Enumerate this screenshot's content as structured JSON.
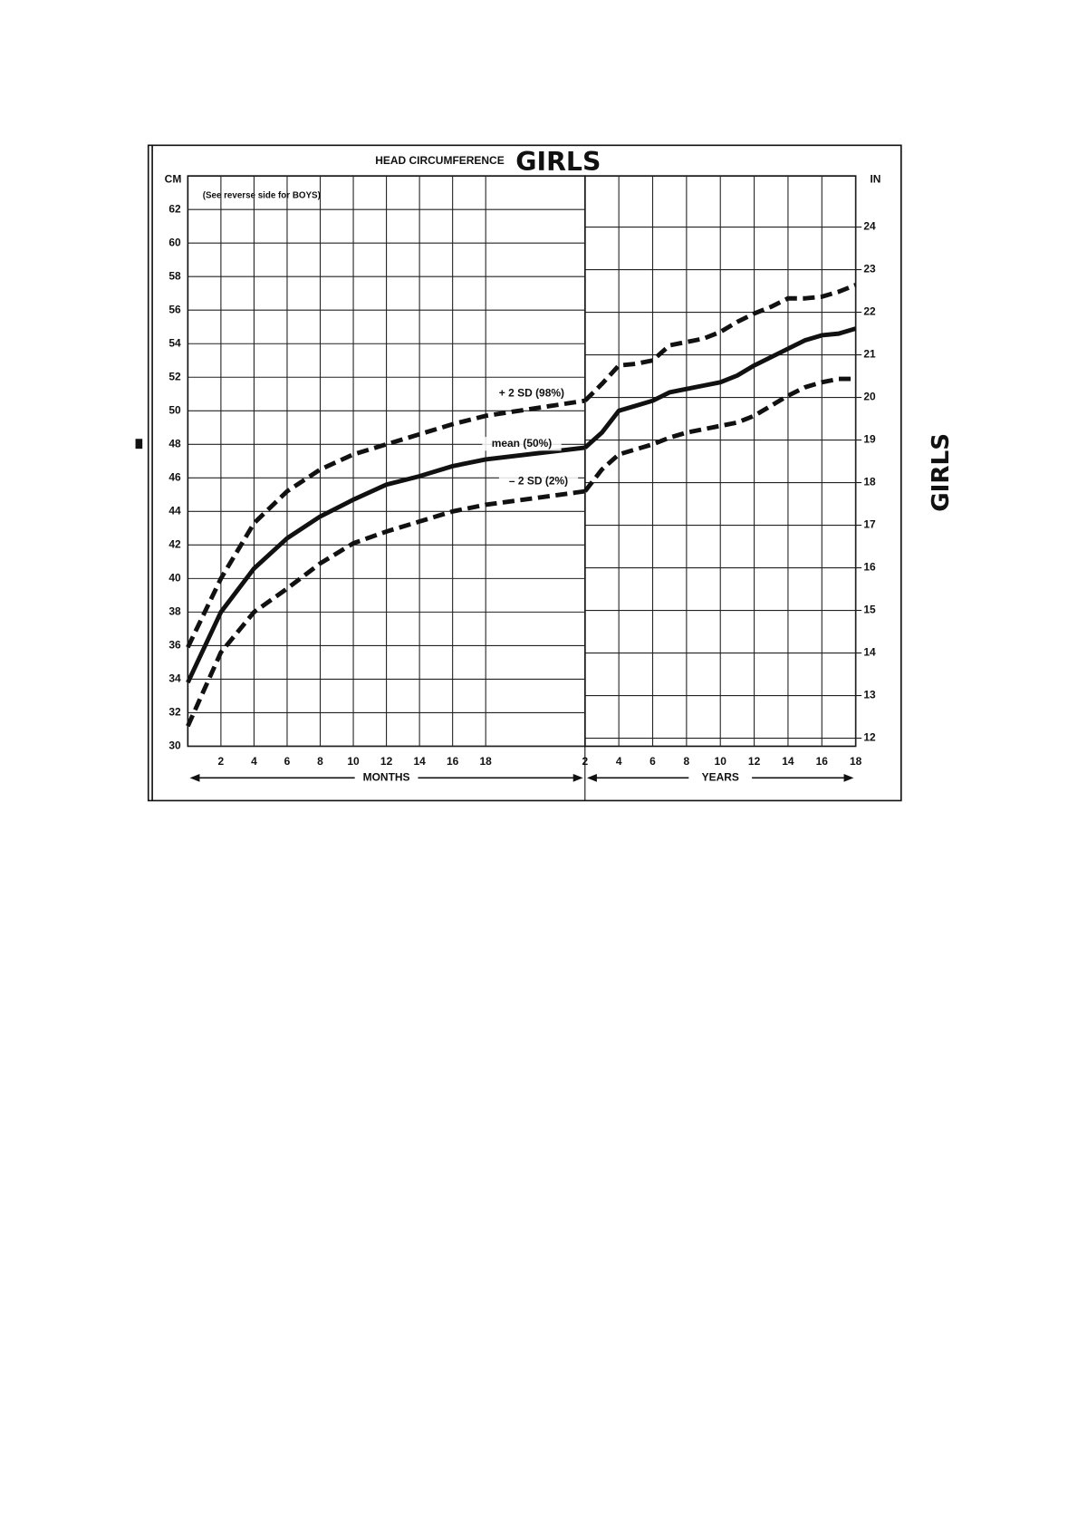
{
  "header": {
    "title": "HEAD CIRCUMFERENCE",
    "title_big": "GIRLS",
    "note": "(See reverse side for BOYS)",
    "side_label": "GIRLS"
  },
  "chart_data": [
    {
      "type": "line",
      "x_label": "MONTHS",
      "y_label": "CM",
      "x": [
        0,
        2,
        4,
        6,
        8,
        10,
        12,
        14,
        16,
        18,
        24
      ],
      "xlim": [
        0,
        24
      ],
      "xticks": [
        2,
        4,
        6,
        8,
        10,
        12,
        14,
        16,
        18
      ],
      "ylim": [
        30,
        64
      ],
      "yticks": [
        30,
        32,
        34,
        36,
        38,
        40,
        42,
        44,
        46,
        48,
        50,
        52,
        54,
        56,
        58,
        60,
        62
      ],
      "grid": true,
      "series": [
        {
          "name": "+ 2 SD (98%)",
          "color": "#111111",
          "dashed": true,
          "values": [
            35.9,
            40.0,
            43.3,
            45.2,
            46.5,
            47.4,
            48.0,
            48.6,
            49.2,
            49.7,
            50.6
          ]
        },
        {
          "name": "mean (50%)",
          "color": "#111111",
          "dashed": false,
          "values": [
            33.8,
            38.0,
            40.6,
            42.4,
            43.7,
            44.7,
            45.6,
            46.1,
            46.7,
            47.1,
            47.8
          ]
        },
        {
          "name": "– 2 SD (2%)",
          "color": "#111111",
          "dashed": true,
          "values": [
            31.2,
            35.6,
            38.0,
            39.4,
            40.9,
            42.1,
            42.8,
            43.4,
            44.0,
            44.4,
            45.2
          ]
        }
      ]
    },
    {
      "type": "line",
      "x_label": "YEARS",
      "y2_label": "IN",
      "x": [
        2,
        3,
        4,
        5,
        6,
        7,
        8,
        9,
        10,
        11,
        12,
        13,
        14,
        15,
        16,
        17,
        18
      ],
      "xlim": [
        2,
        18
      ],
      "xticks": [
        2,
        4,
        6,
        8,
        10,
        12,
        14,
        16,
        18
      ],
      "ylim": [
        30,
        64
      ],
      "y2lim": [
        11.81,
        25.2
      ],
      "y2ticks": [
        12,
        13,
        14,
        15,
        16,
        17,
        18,
        19,
        20,
        21,
        22,
        23,
        24
      ],
      "grid": true,
      "series": [
        {
          "color": "#111111",
          "dashed": true,
          "values": [
            50.6,
            51.6,
            52.7,
            52.8,
            53.0,
            53.9,
            54.1,
            54.3,
            54.7,
            55.3,
            55.8,
            56.2,
            56.7,
            56.7,
            56.8,
            57.1,
            57.5
          ]
        },
        {
          "color": "#111111",
          "dashed": false,
          "values": [
            47.8,
            48.7,
            50.0,
            50.3,
            50.6,
            51.1,
            51.3,
            51.5,
            51.7,
            52.1,
            52.7,
            53.2,
            53.7,
            54.2,
            54.5,
            54.6,
            54.9
          ]
        },
        {
          "color": "#111111",
          "dashed": true,
          "values": [
            45.2,
            46.5,
            47.4,
            47.7,
            48.0,
            48.4,
            48.7,
            48.9,
            49.1,
            49.3,
            49.7,
            50.3,
            50.9,
            51.4,
            51.7,
            51.9,
            51.9
          ]
        }
      ]
    }
  ]
}
